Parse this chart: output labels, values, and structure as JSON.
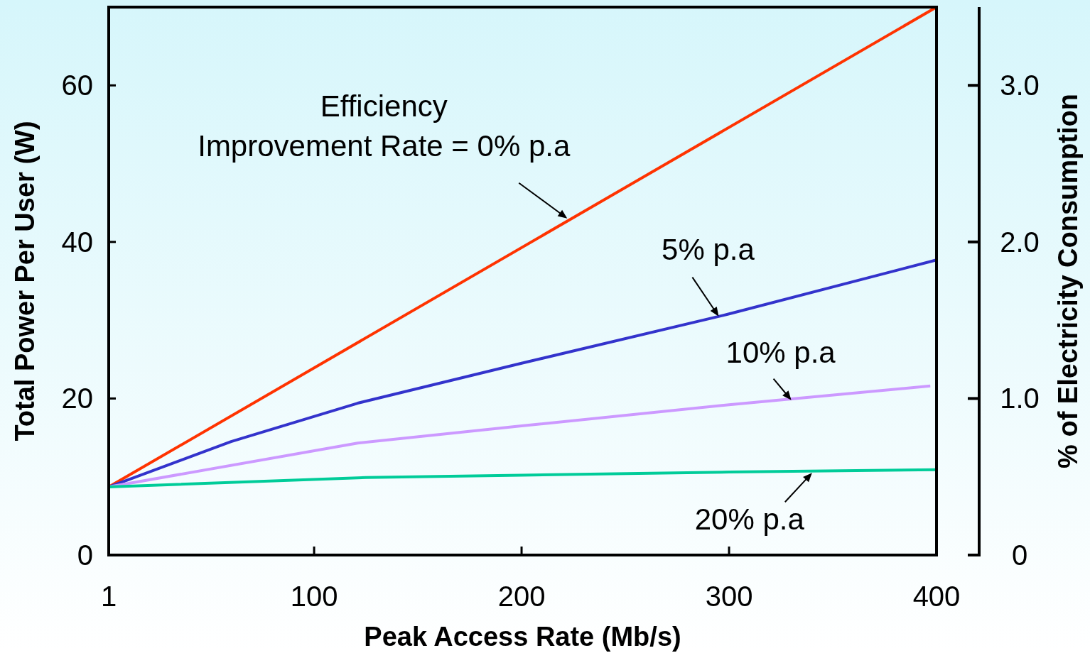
{
  "chart_data": {
    "type": "line",
    "xlabel": "Peak Access Rate (Mb/s)",
    "ylabel": "Total Power Per User (W)",
    "y2label": "% of Electricity Consumption",
    "xlim": [
      1,
      400
    ],
    "xticks": [
      1,
      100,
      200,
      300,
      400
    ],
    "ylim": [
      0,
      70
    ],
    "yticks": [
      0,
      20,
      40,
      60
    ],
    "y2lim": [
      0,
      3.5
    ],
    "y2ticks": [
      {
        "value": 0,
        "label": "0"
      },
      {
        "value": 1,
        "label": "1.0"
      },
      {
        "value": 2,
        "label": "2.0"
      },
      {
        "value": 3,
        "label": "3.0"
      }
    ],
    "grid": false,
    "marker": "none",
    "line_style": "solid",
    "series": [
      {
        "color": "#ff3300",
        "x": [
          1,
          400
        ],
        "values": [
          8.7,
          70
        ]
      },
      {
        "color": "#3333cc",
        "x": [
          1,
          60,
          121,
          200,
          300,
          400
        ],
        "values": [
          8.7,
          14.5,
          19.4,
          24.5,
          30.8,
          37.7
        ]
      },
      {
        "color": "#cc99ff",
        "x": [
          1,
          121,
          200,
          300,
          397
        ],
        "values": [
          8.7,
          14.3,
          16.5,
          19.2,
          21.6
        ]
      },
      {
        "color": "#00cc99",
        "x": [
          1,
          125,
          200,
          300,
          400
        ],
        "values": [
          8.7,
          9.9,
          10.2,
          10.6,
          10.9
        ]
      }
    ],
    "annotations": [
      {
        "text": "Efficiency\nImprovement Rate = 0% p.a",
        "x": 222,
        "y": 43
      },
      {
        "text": "5% p.a",
        "x": 295,
        "y": 30.5
      },
      {
        "text": "10% p.a",
        "x": 330,
        "y": 19.8
      },
      {
        "text": "20% p.a",
        "x": 340,
        "y": 10.5
      }
    ]
  }
}
